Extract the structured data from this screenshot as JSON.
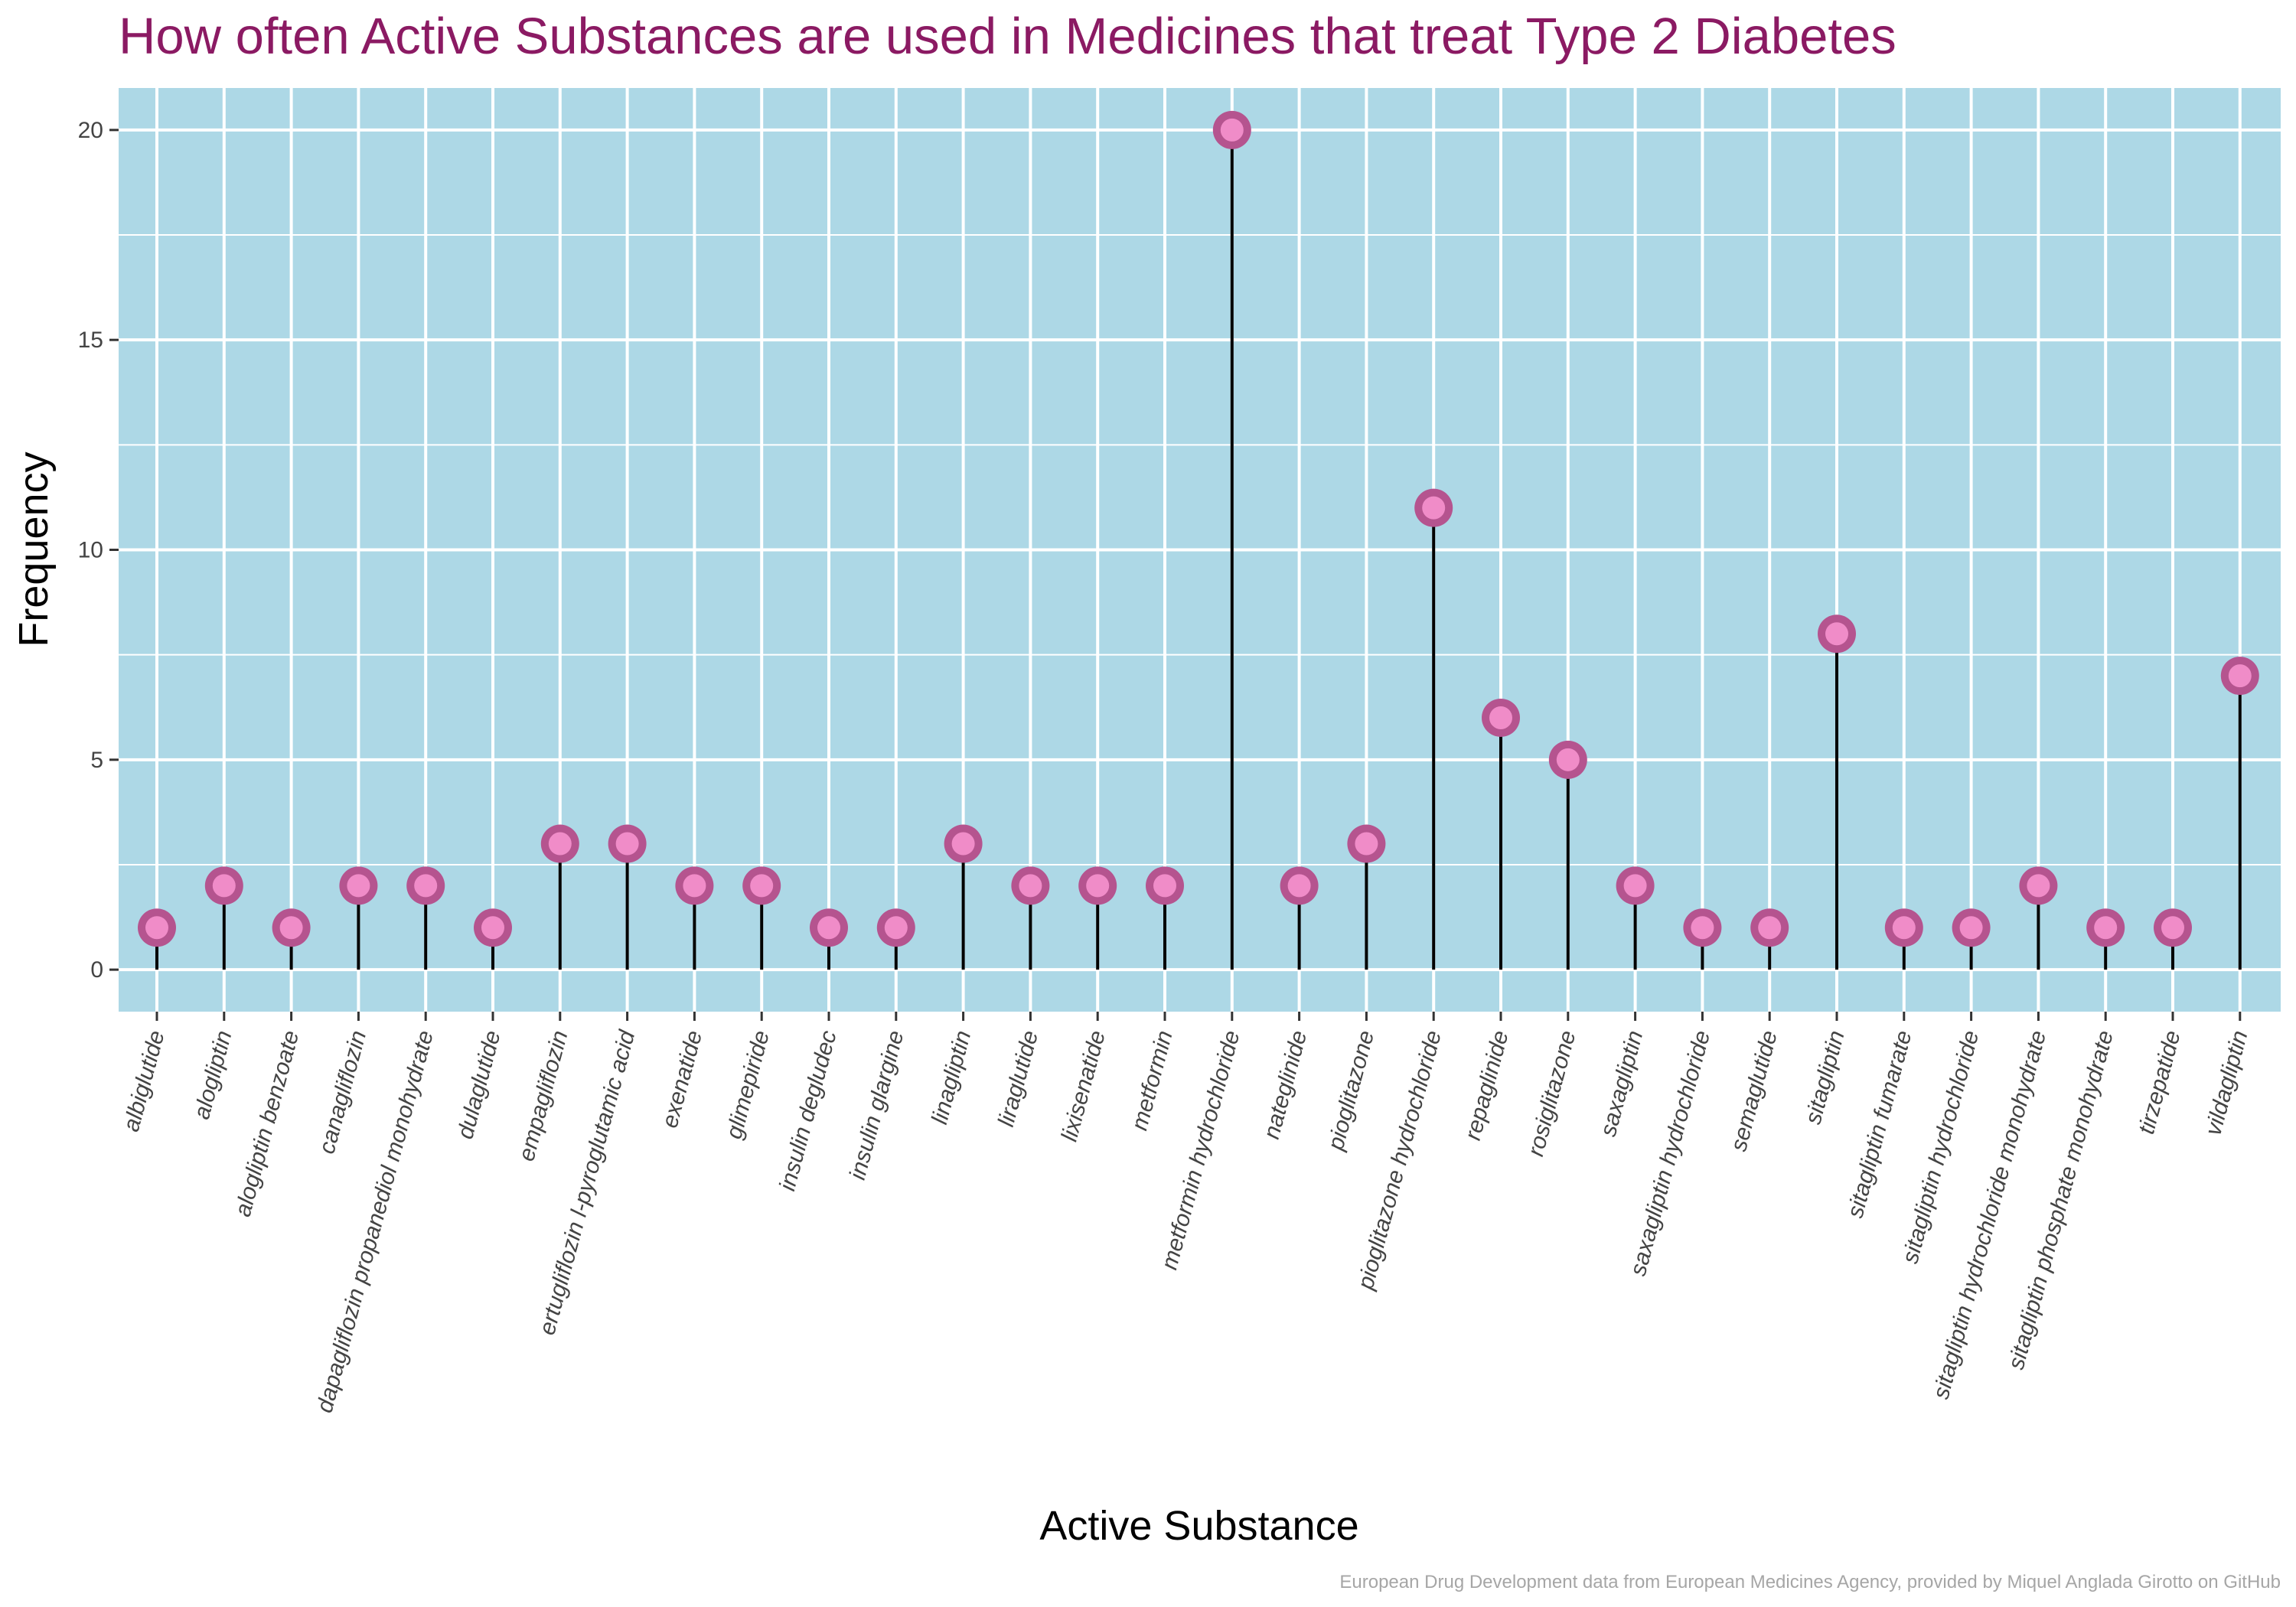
{
  "chart_data": {
    "type": "lollipop",
    "title": "How often Active Substances are used in Medicines that treat Type 2 Diabetes",
    "xlabel": "Active Substance",
    "ylabel": "Frequency",
    "caption": "European Drug Development data from European Medicines Agency, provided by Miquel Anglada Girotto on GitHub",
    "ylim": [
      -1,
      21
    ],
    "yticks": [
      0,
      5,
      10,
      15,
      20
    ],
    "grid": true,
    "legend": "none",
    "categories": [
      "albiglutide",
      "alogliptin",
      "alogliptin benzoate",
      "canagliflozin",
      "dapagliflozin propanediol monohydrate",
      "dulaglutide",
      "empagliflozin",
      "ertugliflozin l-pyroglutamic acid",
      "exenatide",
      "glimepiride",
      "insulin degludec",
      "insulin glargine",
      "linagliptin",
      "liraglutide",
      "lixisenatide",
      "metformin",
      "metformin hydrochloride",
      "nateglinide",
      "pioglitazone",
      "pioglitazone hydrochloride",
      "repaglinide",
      "rosiglitazone",
      "saxagliptin",
      "saxagliptin hydrochloride",
      "semaglutide",
      "sitagliptin",
      "sitagliptin fumarate",
      "sitagliptin hydrochloride",
      "sitagliptin hydrochloride monohydrate",
      "sitagliptin phosphate monohydrate",
      "tirzepatide",
      "vildagliptin"
    ],
    "values": [
      1,
      2,
      1,
      2,
      2,
      1,
      3,
      3,
      2,
      2,
      1,
      1,
      3,
      2,
      2,
      2,
      20,
      2,
      3,
      11,
      6,
      5,
      2,
      1,
      1,
      8,
      1,
      1,
      2,
      1,
      1,
      7
    ],
    "colors": {
      "panel": "#add8e6",
      "grid": "#ffffff",
      "stem": "#000000",
      "point_outer": "#b5548f",
      "point_inner": "#f08cc8",
      "title": "#8b1a63"
    }
  }
}
